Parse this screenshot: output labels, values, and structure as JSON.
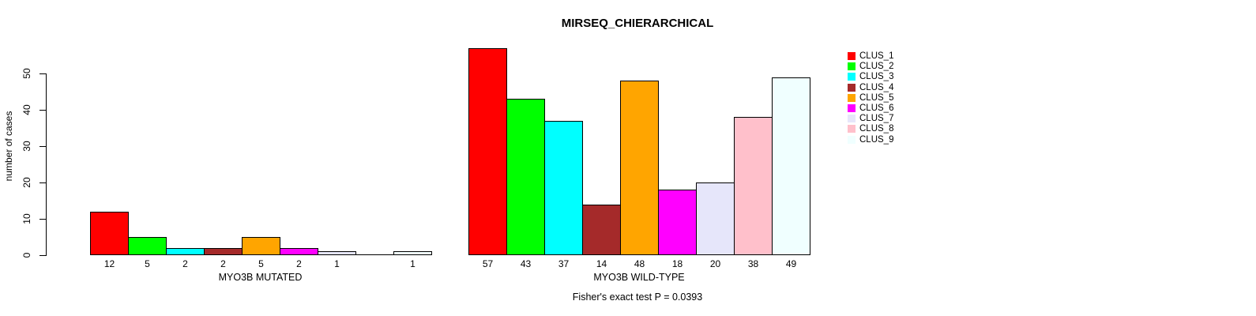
{
  "chart_data": {
    "type": "bar",
    "title": "MIRSEQ_CHIERARCHICAL",
    "ylabel": "number of cases",
    "ylim": [
      0,
      57
    ],
    "yticks": [
      0,
      10,
      20,
      30,
      40,
      50
    ],
    "grid": false,
    "legend_position": "right",
    "annotation": "Fisher's exact test P = 0.0393",
    "categories": [
      "CLUS_1",
      "CLUS_2",
      "CLUS_3",
      "CLUS_4",
      "CLUS_5",
      "CLUS_6",
      "CLUS_7",
      "CLUS_8",
      "CLUS_9"
    ],
    "colors": [
      "#FF0000",
      "#00FF00",
      "#00FFFF",
      "#A52A2A",
      "#FFA500",
      "#FF00FF",
      "#E6E6FA",
      "#FFC0CB",
      "#F0FFFF"
    ],
    "groups": [
      {
        "label": "MYO3B MUTATED",
        "values": [
          12,
          5,
          2,
          2,
          5,
          2,
          1,
          0,
          1
        ]
      },
      {
        "label": "MYO3B WILD-TYPE",
        "values": [
          57,
          43,
          37,
          14,
          48,
          18,
          20,
          38,
          49
        ]
      }
    ],
    "bar_value_labels": "counts shown under each bar; zero-count bars drawn as flat line with no label"
  }
}
